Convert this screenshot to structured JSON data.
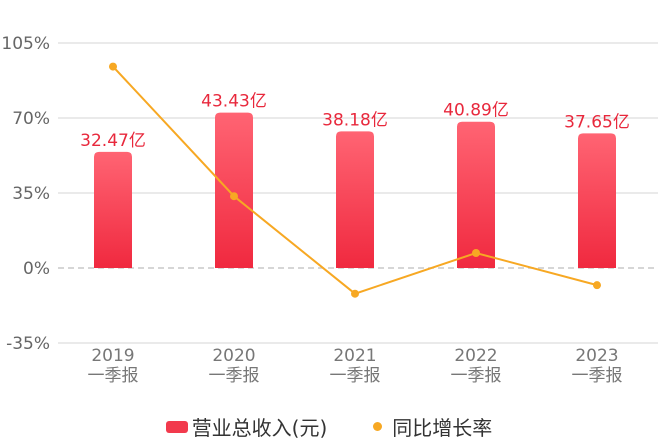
{
  "chart_data": {
    "type": "bar",
    "categories": [
      [
        "2019",
        "一季报"
      ],
      [
        "2020",
        "一季报"
      ],
      [
        "2021",
        "一季报"
      ],
      [
        "2022",
        "一季报"
      ],
      [
        "2023",
        "一季报"
      ]
    ],
    "series": [
      {
        "name": "营业总收入(元)",
        "type": "bar",
        "axis": "left",
        "values": [
          32.47,
          43.43,
          38.18,
          40.89,
          37.65
        ],
        "labels": [
          "32.47亿",
          "43.43亿",
          "38.18亿",
          "40.89亿",
          "37.65亿"
        ],
        "unit": "亿",
        "color": "#f23a4d"
      },
      {
        "name": "同比增长率",
        "type": "line",
        "axis": "right",
        "values": [
          94,
          33.5,
          -12,
          7,
          -8
        ],
        "unit": "%",
        "color": "#f7a823"
      }
    ],
    "y_ticks": [
      "105%",
      "70%",
      "35%",
      "0%",
      "-35%"
    ],
    "ylim": [
      -35,
      105
    ],
    "grid": true,
    "legend_position": "bottom"
  },
  "legend": {
    "bar_label": "营业总收入(元)",
    "line_label": "同比增长率"
  }
}
